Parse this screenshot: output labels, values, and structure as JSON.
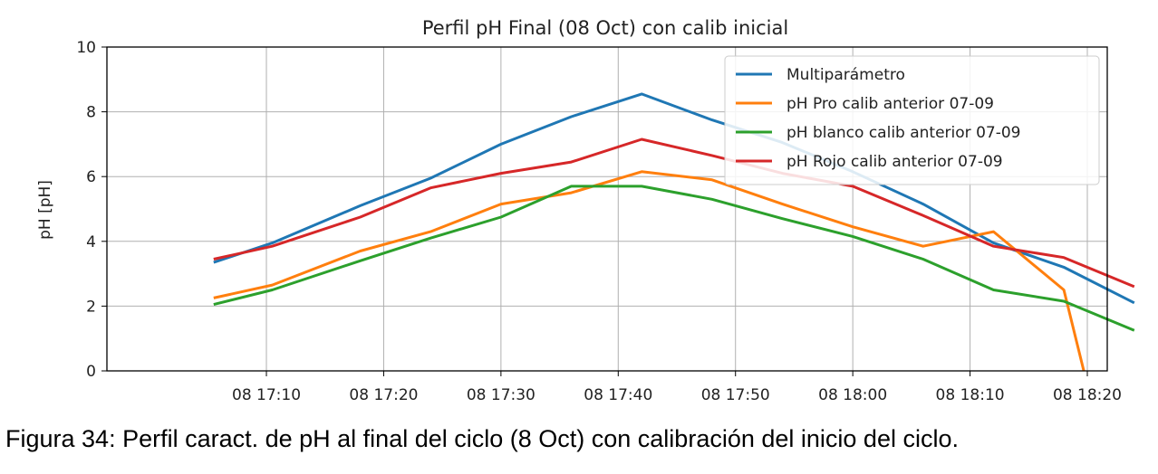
{
  "chart_data": {
    "type": "line",
    "title": "Perfil pH Final (08 Oct) con calib inicial",
    "xlabel": "",
    "ylabel": "pH [pH]",
    "x_unit": "minutes after 08 17:00",
    "xlim": [
      -3.6,
      81.7
    ],
    "ylim": [
      0,
      10
    ],
    "x_ticks": [
      10,
      20,
      30,
      40,
      50,
      60,
      70,
      80
    ],
    "x_tick_labels": [
      "08 17:10",
      "08 17:20",
      "08 17:30",
      "08 17:40",
      "08 17:50",
      "08 18:00",
      "08 18:10",
      "08 18:20"
    ],
    "y_ticks": [
      0,
      2,
      4,
      6,
      8,
      10
    ],
    "y_tick_labels": [
      "0",
      "2",
      "4",
      "6",
      "8",
      "10"
    ],
    "grid": true,
    "legend_position": "top-right",
    "series": [
      {
        "name": "Multiparámetro",
        "color": "#1f77b4",
        "x": [
          5.5,
          10.5,
          18,
          24,
          30,
          36,
          42,
          48,
          54,
          60,
          66,
          72,
          78,
          84
        ],
        "y": [
          3.35,
          3.95,
          5.1,
          5.95,
          7.0,
          7.85,
          8.55,
          7.75,
          7.05,
          6.15,
          5.15,
          3.95,
          3.2,
          2.1
        ]
      },
      {
        "name": "pH Pro calib anterior 07-09",
        "color": "#ff7f0e",
        "x": [
          5.5,
          10.5,
          18,
          24,
          30,
          36,
          42,
          48,
          54,
          60,
          66,
          72,
          78,
          79.7
        ],
        "y": [
          2.25,
          2.65,
          3.7,
          4.3,
          5.15,
          5.5,
          6.15,
          5.9,
          5.15,
          4.45,
          3.85,
          4.3,
          2.5,
          0
        ]
      },
      {
        "name": "pH blanco calib anterior 07-09",
        "color": "#2ca02c",
        "x": [
          5.5,
          10.5,
          18,
          24,
          30,
          36,
          42,
          48,
          54,
          60,
          66,
          72,
          78,
          84
        ],
        "y": [
          2.05,
          2.5,
          3.4,
          4.1,
          4.75,
          5.7,
          5.7,
          5.3,
          4.7,
          4.15,
          3.45,
          2.5,
          2.15,
          1.25
        ]
      },
      {
        "name": "pH Rojo calib anterior 07-09",
        "color": "#d62728",
        "x": [
          5.5,
          10.5,
          18,
          24,
          30,
          36,
          42,
          48,
          54,
          60,
          66,
          72,
          78,
          84
        ],
        "y": [
          3.45,
          3.85,
          4.75,
          5.65,
          6.1,
          6.45,
          7.15,
          6.65,
          6.1,
          5.7,
          4.8,
          3.85,
          3.5,
          2.6
        ]
      }
    ]
  },
  "caption": "Figura 34: Perfil caract. de pH al final del ciclo (8 Oct) con calibración del inicio del ciclo."
}
